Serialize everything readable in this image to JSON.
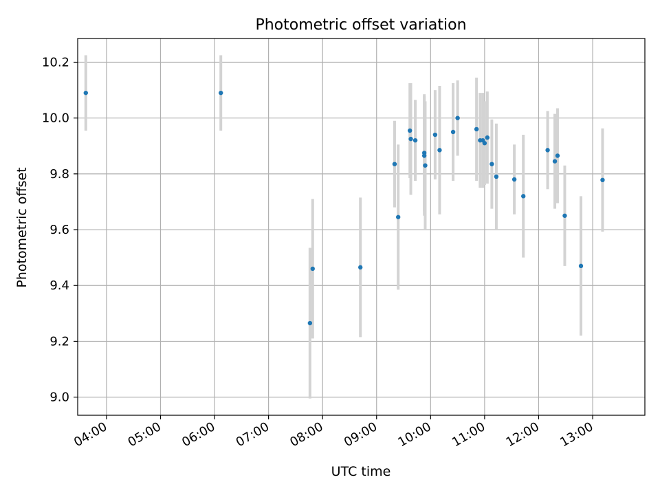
{
  "colors": {
    "marker": "#1f77b4",
    "errorbar": "#d3d3d3",
    "grid": "#b0b0b0",
    "axes": "#000000",
    "background": "#ffffff"
  },
  "chart_data": {
    "type": "scatter",
    "title": "Photometric offset variation",
    "xlabel": "UTC time",
    "ylabel": "Photometric offset",
    "x_unit": "UTC hour",
    "xlim": [
      "03:28",
      "13:58"
    ],
    "ylim": [
      8.935,
      10.285
    ],
    "grid": true,
    "legend": "none",
    "x_ticks": [
      "04:00",
      "05:00",
      "06:00",
      "07:00",
      "08:00",
      "09:00",
      "10:00",
      "11:00",
      "12:00",
      "13:00"
    ],
    "y_ticks": [
      "9.0",
      "9.2",
      "9.4",
      "9.6",
      "9.8",
      "10.0",
      "10.2"
    ],
    "series": [
      {
        "marker": "circle",
        "errorbars": true,
        "points": [
          {
            "x": "03:37",
            "y": 10.09,
            "err": 0.135
          },
          {
            "x": "06:07",
            "y": 10.09,
            "err": 0.135
          },
          {
            "x": "07:46",
            "y": 9.265,
            "err": 0.27
          },
          {
            "x": "07:49",
            "y": 9.46,
            "err": 0.25
          },
          {
            "x": "08:42",
            "y": 9.465,
            "err": 0.25
          },
          {
            "x": "09:20",
            "y": 9.835,
            "err": 0.155
          },
          {
            "x": "09:24",
            "y": 9.645,
            "err": 0.26
          },
          {
            "x": "09:37",
            "y": 9.955,
            "err": 0.17
          },
          {
            "x": "09:38",
            "y": 9.925,
            "err": 0.2
          },
          {
            "x": "09:43",
            "y": 9.92,
            "err": 0.145
          },
          {
            "x": "09:53",
            "y": 9.875,
            "err": 0.21
          },
          {
            "x": "09:53",
            "y": 9.865,
            "err": 0.215
          },
          {
            "x": "09:54",
            "y": 9.83,
            "err": 0.23
          },
          {
            "x": "10:05",
            "y": 9.94,
            "err": 0.16
          },
          {
            "x": "10:10",
            "y": 9.885,
            "err": 0.23
          },
          {
            "x": "10:25",
            "y": 9.95,
            "err": 0.175
          },
          {
            "x": "10:30",
            "y": 10.0,
            "err": 0.135
          },
          {
            "x": "10:51",
            "y": 9.96,
            "err": 0.185
          },
          {
            "x": "10:55",
            "y": 9.92,
            "err": 0.17
          },
          {
            "x": "10:58",
            "y": 9.92,
            "err": 0.17
          },
          {
            "x": "11:00",
            "y": 9.91,
            "err": 0.15
          },
          {
            "x": "11:03",
            "y": 9.93,
            "err": 0.165
          },
          {
            "x": "11:08",
            "y": 9.835,
            "err": 0.16
          },
          {
            "x": "11:13",
            "y": 9.79,
            "err": 0.19
          },
          {
            "x": "11:33",
            "y": 9.78,
            "err": 0.125
          },
          {
            "x": "11:43",
            "y": 9.72,
            "err": 0.22
          },
          {
            "x": "12:10",
            "y": 9.885,
            "err": 0.14
          },
          {
            "x": "12:18",
            "y": 9.845,
            "err": 0.17
          },
          {
            "x": "12:21",
            "y": 9.865,
            "err": 0.17
          },
          {
            "x": "12:29",
            "y": 9.65,
            "err": 0.18
          },
          {
            "x": "12:47",
            "y": 9.47,
            "err": 0.25
          },
          {
            "x": "13:11",
            "y": 9.778,
            "err": 0.185
          }
        ]
      }
    ]
  }
}
